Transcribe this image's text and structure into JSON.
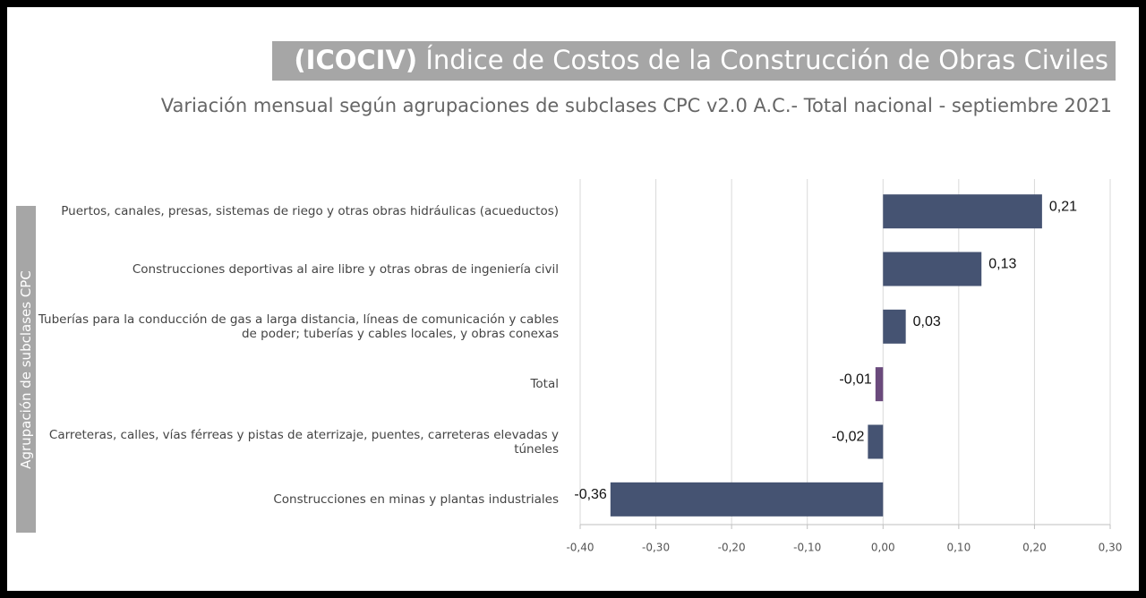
{
  "chart_data": {
    "type": "hbar",
    "title_abbr": "(ICOCIV)",
    "title": "Índice de Costos de la Construcción de Obras Civiles",
    "subtitle": "Variación mensual  según agrupaciones de subclases CPC v2.0 A.C.- Total nacional - septiembre 2021",
    "y_label": "Agrupación de subclases CPC",
    "categories": [
      "Puertos, canales, presas, sistemas de riego y otras obras hidráulicas (acueductos)",
      "Construcciones deportivas al aire libre y otras obras de ingeniería civil",
      "Tuberías para la conducción de gas a larga distancia, líneas de comunicación y cables de poder; tuberías y cables locales, y obras conexas",
      "Total",
      "Carreteras, calles, vías férreas y pistas de aterrizaje, puentes, carreteras elevadas y túneles",
      "Construcciones  en minas y plantas industriales"
    ],
    "values": [
      0.21,
      0.13,
      0.03,
      -0.01,
      -0.02,
      -0.36
    ],
    "value_labels": [
      "0,21",
      "0,13",
      "0,03",
      "-0,01",
      "-0,02",
      "-0,36"
    ],
    "colors": [
      "#455372",
      "#455372",
      "#455372",
      "#6a4a7c",
      "#455372",
      "#455372"
    ],
    "xlim": [
      -0.4,
      0.3
    ],
    "xticks": [
      {
        "value": -0.4,
        "label": "-0,40"
      },
      {
        "value": -0.3,
        "label": "-0,30"
      },
      {
        "value": -0.2,
        "label": "-0,20"
      },
      {
        "value": -0.1,
        "label": "-0,10"
      },
      {
        "value": 0,
        "label": "0,00"
      },
      {
        "value": 0.1,
        "label": "0,10"
      },
      {
        "value": 0.2,
        "label": "0,20"
      },
      {
        "value": 0.3,
        "label": "0,30"
      }
    ],
    "grid": true
  }
}
